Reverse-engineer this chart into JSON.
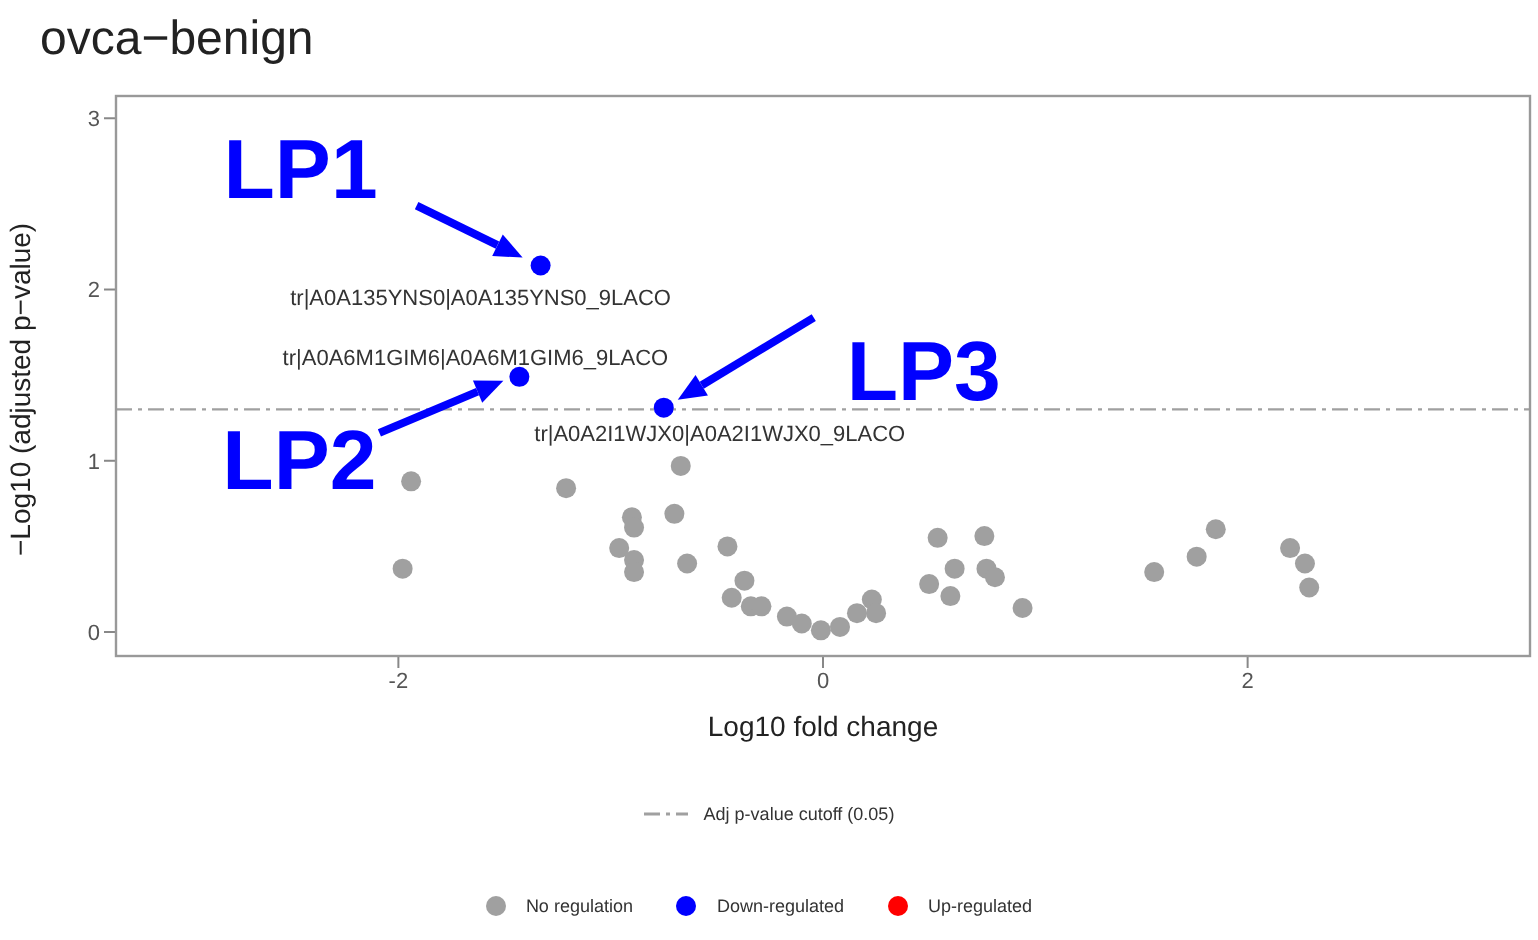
{
  "chart_data": {
    "type": "scatter",
    "title": "ovca−benign",
    "xlabel": "Log10 fold change",
    "ylabel": "−Log10 (adjusted p−value)",
    "xlim": [
      -3.33,
      3.33
    ],
    "ylim": [
      -0.14,
      3.13
    ],
    "xticks": [
      -2,
      0,
      2
    ],
    "yticks": [
      0,
      1,
      2,
      3
    ],
    "grid": false,
    "legend": "bottom",
    "marker": "circle",
    "series": [
      {
        "name": "No regulation",
        "color": "#a0a0a0",
        "x": [
          -1.94,
          -1.98,
          -1.21,
          -0.67,
          -0.7,
          -0.9,
          -0.89,
          -0.96,
          -0.89,
          -0.89,
          -0.64,
          -0.45,
          -0.37,
          -0.43,
          -0.34,
          -0.29,
          -0.17,
          -0.1,
          -0.01,
          0.08,
          0.16,
          0.23,
          0.25,
          0.54,
          0.62,
          0.5,
          0.6,
          0.76,
          0.77,
          0.81,
          0.94,
          1.56,
          1.76,
          1.85,
          2.2,
          2.27,
          2.29
        ],
        "values": [
          0.88,
          0.37,
          0.84,
          0.97,
          0.69,
          0.67,
          0.61,
          0.49,
          0.42,
          0.35,
          0.4,
          0.5,
          0.3,
          0.2,
          0.15,
          0.15,
          0.09,
          0.05,
          0.01,
          0.03,
          0.11,
          0.19,
          0.11,
          0.55,
          0.37,
          0.28,
          0.21,
          0.56,
          0.37,
          0.32,
          0.14,
          0.35,
          0.44,
          0.6,
          0.49,
          0.4,
          0.26
        ]
      },
      {
        "name": "Down-regulated",
        "color": "#0000ff",
        "x": [
          -1.33,
          -1.43,
          -0.75
        ],
        "values": [
          2.14,
          1.49,
          1.31
        ]
      },
      {
        "name": "Up-regulated",
        "color": "#ff0000"
      }
    ],
    "ref_lines": [
      {
        "axis": "y",
        "value": 1.3,
        "label": "Adj p-value cutoff (0.05)",
        "color": "#a0a0a0",
        "line_style": "dashed"
      }
    ],
    "annotations": [
      {
        "text": "LP1",
        "x": -1.33,
        "y": 2.14
      },
      {
        "text": "tr|A0A135YNS0|A0A135YNS0_9LACO",
        "x": -1.33,
        "y": 2.14
      },
      {
        "text": "LP2",
        "x": -1.43,
        "y": 1.49
      },
      {
        "text": "tr|A0A6M1GIM6|A0A6M1GIM6_9LACO",
        "x": -1.43,
        "y": 1.49
      },
      {
        "text": "LP3",
        "x": -0.75,
        "y": 1.31
      },
      {
        "text": "tr|A0A2I1WJX0|A0A2I1WJX0_9LACO",
        "x": -0.75,
        "y": 1.31
      }
    ]
  }
}
